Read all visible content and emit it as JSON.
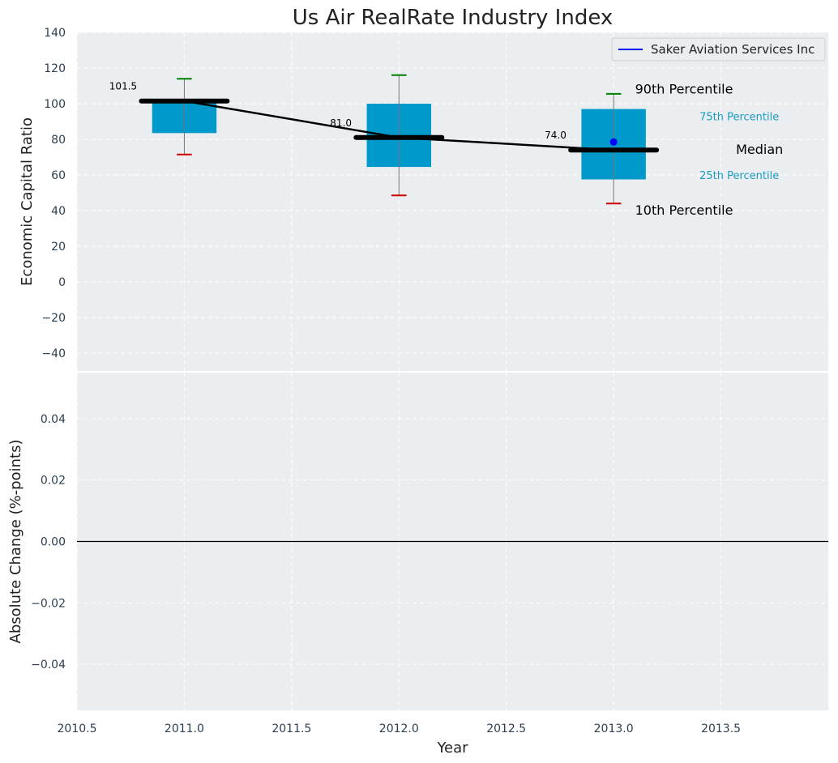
{
  "chart_data": [
    {
      "type": "box",
      "title": "Us Air RealRate Industry Index",
      "xlabel": "",
      "ylabel": "Economic Capital Ratio",
      "xlim": [
        2010.5,
        2014.0
      ],
      "ylim": [
        -50,
        140
      ],
      "y_ticks": [
        140,
        120,
        100,
        80,
        60,
        40,
        20,
        0,
        -20,
        -40
      ],
      "y_tick_labels": [
        "140",
        "120",
        "100",
        "80",
        "60",
        "40",
        "20",
        "0",
        "−20",
        "−40"
      ],
      "grid": true,
      "legend": {
        "position": "top-right",
        "entries": [
          "Saker Aviation Services Inc"
        ]
      },
      "boxes": [
        {
          "x": 2011.0,
          "p10": 71.5,
          "p25": 83.5,
          "median": 101.5,
          "p75": 101.5,
          "p90": 114.0,
          "median_label": "101.5"
        },
        {
          "x": 2012.0,
          "p10": 48.5,
          "p25": 64.5,
          "median": 81.0,
          "p75": 100.0,
          "p90": 116.0,
          "median_label": "81.0"
        },
        {
          "x": 2013.0,
          "p10": 44.0,
          "p25": 57.5,
          "median": 74.0,
          "p75": 97.0,
          "p90": 105.5,
          "median_label": "74.0"
        }
      ],
      "median_line": {
        "x": [
          2011.0,
          2012.0,
          2013.0
        ],
        "y": [
          101.5,
          81.0,
          74.0
        ]
      },
      "series": [
        {
          "name": "Saker Aviation Services Inc",
          "x": [
            2013.0
          ],
          "y": [
            78.5
          ],
          "color": "#0000ff"
        }
      ],
      "annotations": [
        {
          "text": "90th Percentile",
          "x": 2013.1,
          "y": 108,
          "color": "#000000"
        },
        {
          "text": "75th Percentile",
          "x": 2013.4,
          "y": 93,
          "color": "#1a9bc4"
        },
        {
          "text": "Median",
          "x": 2013.57,
          "y": 74,
          "color": "#000000"
        },
        {
          "text": "25th Percentile",
          "x": 2013.4,
          "y": 60,
          "color": "#1a9bc4"
        },
        {
          "text": "10th Percentile",
          "x": 2013.1,
          "y": 40,
          "color": "#000000"
        }
      ],
      "colors": {
        "box": "#0099cc",
        "p90_cap": "#008000",
        "p10_cap": "#cc0000",
        "median": "#000000",
        "background": "#eaeef0"
      }
    },
    {
      "type": "line",
      "xlabel": "Year",
      "ylabel": "Absolute Change (%-points)",
      "xlim": [
        2010.5,
        2014.0
      ],
      "ylim": [
        -0.055,
        0.055
      ],
      "x_ticks": [
        2010.5,
        2011.0,
        2011.5,
        2012.0,
        2012.5,
        2013.0,
        2013.5
      ],
      "x_tick_labels": [
        "2010.5",
        "2011.0",
        "2011.5",
        "2012.0",
        "2012.5",
        "2013.0",
        "2013.5"
      ],
      "y_ticks": [
        0.04,
        0.02,
        0.0,
        -0.02,
        -0.04
      ],
      "y_tick_labels": [
        "0.04",
        "0.02",
        "0.00",
        "−0.02",
        "−0.04"
      ],
      "grid": true,
      "reference_line": {
        "y": 0.0,
        "color": "#000000"
      }
    }
  ]
}
